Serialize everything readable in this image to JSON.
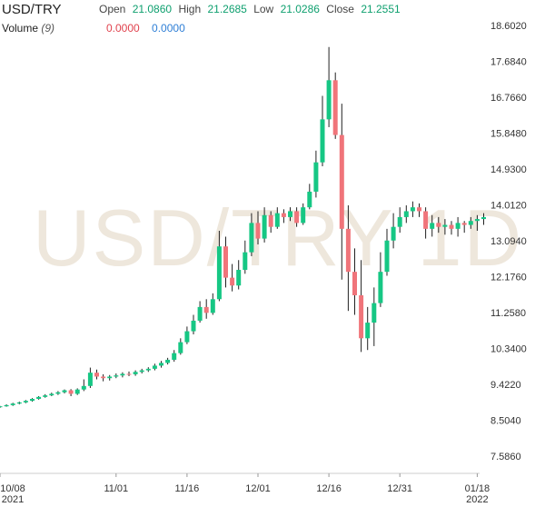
{
  "header": {
    "symbol": "USD/TRY",
    "open_label": "Open",
    "open_value": "21.0860",
    "high_label": "High",
    "high_value": "21.2685",
    "low_label": "Low",
    "low_value": "21.0286",
    "close_label": "Close",
    "close_value": "21.2551",
    "volume_label": "Volume",
    "volume_period": "(9)",
    "volume_value_1": "0.0000",
    "volume_value_2": "0.0000"
  },
  "watermark": "USD/TRY 1D",
  "colors": {
    "up": "#16c784",
    "down": "#f0747a",
    "wick": "#222222",
    "value_green": "#0d9f6e",
    "value_red": "#e0424e",
    "value_blue": "#2f7fd6"
  },
  "chart_data": {
    "type": "candlestick",
    "y_ticks": [
      "18.6020",
      "17.6840",
      "16.7660",
      "15.8480",
      "14.9300",
      "14.0120",
      "13.0940",
      "12.1760",
      "11.2580",
      "10.3400",
      "9.4220",
      "8.5040",
      "7.5860"
    ],
    "ylim": [
      7.586,
      18.602
    ],
    "x_ticks": [
      {
        "label": "10/08",
        "sub": "2021",
        "day": 0
      },
      {
        "label": "11/01",
        "sub": "",
        "day": 18
      },
      {
        "label": "11/16",
        "sub": "",
        "day": 29
      },
      {
        "label": "12/01",
        "sub": "",
        "day": 40
      },
      {
        "label": "12/16",
        "sub": "",
        "day": 51
      },
      {
        "label": "12/31",
        "sub": "",
        "day": 62
      },
      {
        "label": "01/18",
        "sub": "2022",
        "day": 74
      }
    ],
    "candles": [
      [
        8.85,
        8.86,
        8.82,
        8.87
      ],
      [
        8.86,
        8.89,
        8.85,
        8.91
      ],
      [
        8.89,
        8.93,
        8.87,
        8.95
      ],
      [
        8.93,
        8.96,
        8.91,
        8.98
      ],
      [
        8.96,
        9.0,
        8.94,
        9.02
      ],
      [
        9.0,
        9.05,
        8.98,
        9.07
      ],
      [
        9.05,
        9.1,
        9.03,
        9.12
      ],
      [
        9.1,
        9.14,
        9.08,
        9.17
      ],
      [
        9.14,
        9.18,
        9.12,
        9.21
      ],
      [
        9.18,
        9.22,
        9.15,
        9.25
      ],
      [
        9.22,
        9.27,
        9.19,
        9.29
      ],
      [
        9.27,
        9.18,
        9.12,
        9.3
      ],
      [
        9.18,
        9.29,
        9.15,
        9.32
      ],
      [
        9.29,
        9.38,
        9.25,
        9.55
      ],
      [
        9.38,
        9.72,
        9.33,
        9.85
      ],
      [
        9.72,
        9.62,
        9.55,
        9.8
      ],
      [
        9.62,
        9.58,
        9.5,
        9.68
      ],
      [
        9.58,
        9.62,
        9.52,
        9.66
      ],
      [
        9.62,
        9.65,
        9.58,
        9.7
      ],
      [
        9.65,
        9.69,
        9.6,
        9.73
      ],
      [
        9.69,
        9.68,
        9.63,
        9.75
      ],
      [
        9.68,
        9.74,
        9.64,
        9.78
      ],
      [
        9.74,
        9.78,
        9.7,
        9.82
      ],
      [
        9.78,
        9.82,
        9.74,
        9.86
      ],
      [
        9.82,
        9.9,
        9.78,
        9.95
      ],
      [
        9.9,
        9.97,
        9.85,
        10.02
      ],
      [
        9.97,
        10.05,
        9.93,
        10.1
      ],
      [
        10.05,
        10.22,
        10.0,
        10.3
      ],
      [
        10.22,
        10.5,
        10.18,
        10.6
      ],
      [
        10.5,
        10.78,
        10.45,
        10.9
      ],
      [
        10.78,
        11.05,
        10.7,
        11.2
      ],
      [
        11.05,
        11.4,
        11.0,
        11.55
      ],
      [
        11.4,
        11.25,
        11.1,
        11.6
      ],
      [
        11.25,
        11.6,
        11.2,
        11.75
      ],
      [
        11.6,
        12.95,
        11.55,
        13.35
      ],
      [
        12.95,
        12.15,
        11.9,
        13.2
      ],
      [
        12.15,
        11.95,
        11.8,
        12.5
      ],
      [
        11.95,
        12.35,
        11.85,
        12.6
      ],
      [
        12.35,
        12.8,
        12.25,
        13.1
      ],
      [
        12.8,
        13.55,
        12.7,
        13.8
      ],
      [
        13.55,
        13.15,
        13.0,
        13.85
      ],
      [
        13.15,
        13.75,
        13.05,
        13.95
      ],
      [
        13.75,
        13.45,
        13.3,
        13.85
      ],
      [
        13.45,
        13.8,
        13.4,
        13.95
      ],
      [
        13.8,
        13.7,
        13.55,
        13.9
      ],
      [
        13.7,
        13.85,
        13.6,
        13.95
      ],
      [
        13.85,
        13.55,
        13.45,
        13.95
      ],
      [
        13.55,
        13.95,
        13.5,
        14.05
      ],
      [
        13.95,
        14.35,
        13.9,
        14.55
      ],
      [
        14.35,
        15.1,
        14.2,
        15.4
      ],
      [
        15.1,
        16.2,
        15.0,
        16.8
      ],
      [
        16.2,
        17.2,
        16.0,
        18.05
      ],
      [
        17.2,
        15.8,
        15.7,
        17.4
      ],
      [
        15.8,
        13.4,
        12.1,
        16.6
      ],
      [
        13.4,
        12.3,
        11.3,
        14.0
      ],
      [
        12.3,
        11.7,
        11.2,
        12.9
      ],
      [
        11.7,
        10.6,
        10.25,
        12.6
      ],
      [
        10.6,
        11.0,
        10.3,
        11.4
      ],
      [
        11.0,
        11.5,
        10.4,
        11.9
      ],
      [
        11.5,
        12.3,
        11.4,
        12.8
      ],
      [
        12.3,
        13.1,
        12.2,
        13.4
      ],
      [
        13.1,
        13.45,
        12.9,
        13.8
      ],
      [
        13.45,
        13.7,
        13.3,
        13.95
      ],
      [
        13.7,
        13.85,
        13.55,
        14.0
      ],
      [
        13.85,
        13.95,
        13.7,
        14.1
      ],
      [
        13.95,
        13.85,
        13.7,
        14.05
      ],
      [
        13.85,
        13.4,
        13.15,
        13.95
      ],
      [
        13.4,
        13.55,
        13.2,
        13.75
      ],
      [
        13.55,
        13.45,
        13.3,
        13.7
      ],
      [
        13.45,
        13.5,
        13.25,
        13.65
      ],
      [
        13.5,
        13.4,
        13.25,
        13.6
      ],
      [
        13.4,
        13.55,
        13.2,
        13.7
      ],
      [
        13.55,
        13.5,
        13.3,
        13.6
      ],
      [
        13.5,
        13.6,
        13.4,
        13.7
      ],
      [
        13.6,
        13.65,
        13.35,
        13.75
      ],
      [
        13.65,
        13.7,
        13.5,
        13.8
      ]
    ]
  }
}
